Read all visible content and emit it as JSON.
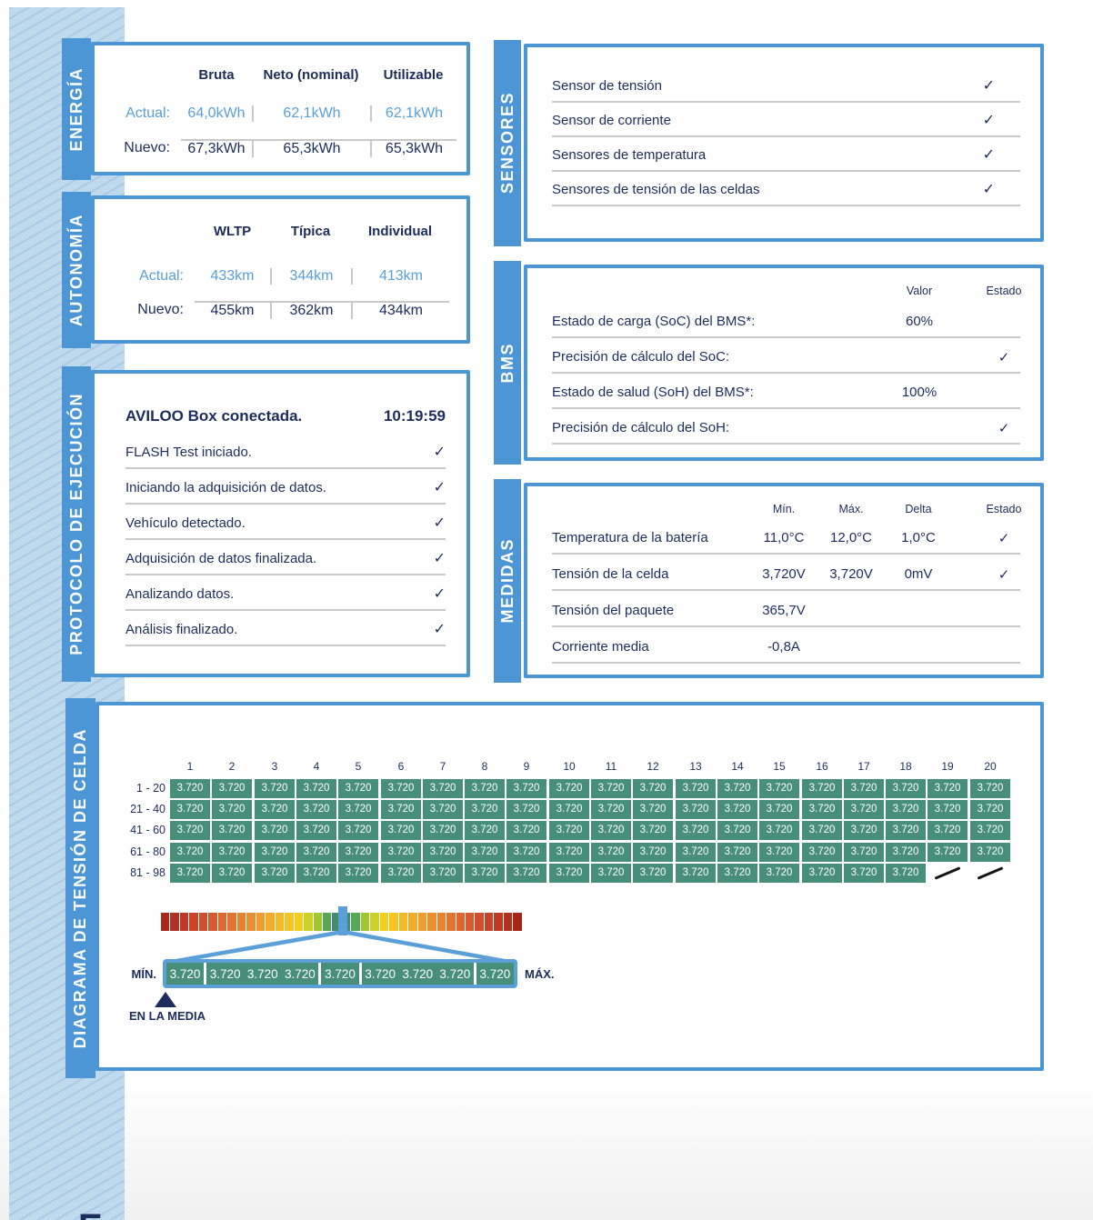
{
  "page": {
    "accent_blue": "#4d96d5",
    "navy": "#1c2d5c",
    "light_blue_value": "#58a0d7",
    "cell_green": "#478f78",
    "bottom_glyph": "E"
  },
  "energia": {
    "title": "ENERGÍA",
    "columns": [
      "Bruta",
      "Neto (nominal)",
      "Utilizable"
    ],
    "rows": [
      {
        "label": "Actual:",
        "values": [
          "64,0kWh",
          "62,1kWh",
          "62,1kWh"
        ]
      },
      {
        "label": "Nuevo:",
        "values": [
          "67,3kWh",
          "65,3kWh",
          "65,3kWh"
        ]
      }
    ]
  },
  "autonomia": {
    "title": "AUTONOMÍA",
    "columns": [
      "WLTP",
      "Típica",
      "Individual"
    ],
    "rows": [
      {
        "label": "Actual:",
        "values": [
          "433km",
          "344km",
          "413km"
        ]
      },
      {
        "label": "Nuevo:",
        "values": [
          "455km",
          "362km",
          "434km"
        ]
      }
    ]
  },
  "protocolo": {
    "title": "PROTOCOLO DE EJECUCIÓN",
    "header": {
      "label": "AVILOO Box conectada.",
      "time": "10:19:59"
    },
    "steps": [
      {
        "label": "FLASH Test iniciado.",
        "check": "✓"
      },
      {
        "label": "Iniciando la adquisición de datos.",
        "check": "✓"
      },
      {
        "label": "Vehículo detectado.",
        "check": "✓"
      },
      {
        "label": "Adquisición de datos finalizada.",
        "check": "✓"
      },
      {
        "label": "Analizando datos.",
        "check": "✓"
      },
      {
        "label": "Análisis finalizado.",
        "check": "✓"
      }
    ]
  },
  "sensores": {
    "title": "SENSORES",
    "rows": [
      {
        "label": "Sensor de tensión",
        "check": "✓"
      },
      {
        "label": "Sensor de corriente",
        "check": "✓"
      },
      {
        "label": "Sensores de temperatura",
        "check": "✓"
      },
      {
        "label": "Sensores de tensión de las celdas",
        "check": "✓"
      }
    ]
  },
  "bms": {
    "title": "BMS",
    "col_headers": [
      "Valor",
      "Estado"
    ],
    "rows": [
      {
        "label": "Estado de carga (SoC) del BMS*:",
        "valor": "60%",
        "check": ""
      },
      {
        "label": "Precisión de cálculo del SoC:",
        "valor": "",
        "check": "✓"
      },
      {
        "label": "Estado de salud (SoH) del BMS*:",
        "valor": "100%",
        "check": ""
      },
      {
        "label": "Precisión de cálculo del SoH:",
        "valor": "",
        "check": "✓"
      }
    ]
  },
  "medidas": {
    "title": "MEDIDAS",
    "col_headers": [
      "Mín.",
      "Máx.",
      "Delta",
      "Estado"
    ],
    "rows": [
      {
        "label": "Temperatura de la batería",
        "min": "11,0°C",
        "max": "12,0°C",
        "delta": "1,0°C",
        "check": "✓"
      },
      {
        "label": "Tensión de la celda",
        "min": "3,720V",
        "max": "3,720V",
        "delta": "0mV",
        "check": "✓"
      },
      {
        "label": "Tensión del paquete",
        "min": "365,7V",
        "max": "",
        "delta": "",
        "check": ""
      },
      {
        "label": "Corriente media",
        "min": "-0,8A",
        "max": "",
        "delta": "",
        "check": ""
      }
    ]
  },
  "diagrama": {
    "title": "DIAGRAMA DE TENSIÓN DE CELDA",
    "col_headers": [
      "1",
      "2",
      "3",
      "4",
      "5",
      "6",
      "7",
      "8",
      "9",
      "10",
      "11",
      "12",
      "13",
      "14",
      "15",
      "16",
      "17",
      "18",
      "19",
      "20"
    ],
    "row_headers": [
      "1 - 20",
      "21 - 40",
      "41 - 60",
      "61 - 80",
      "81 - 98"
    ],
    "cell_value": "3.720",
    "cells_per_row": [
      20,
      20,
      20,
      20,
      18
    ],
    "cell_color": "#478f78",
    "gradient_colors": [
      "#a5281b",
      "#b23122",
      "#bd3a26",
      "#c74429",
      "#cf4f2c",
      "#d75a2e",
      "#dd6730",
      "#e27431",
      "#e78231",
      "#eb9030",
      "#ef9e2e",
      "#f2ac2b",
      "#f4b928",
      "#f5c524",
      "#edd020",
      "#cdd026",
      "#9fc734",
      "#58a658",
      "#3f8e74",
      "#3f8e74",
      "#58a658",
      "#9fc734",
      "#cdd026",
      "#edd020",
      "#f5c524",
      "#f4b928",
      "#f2ac2b",
      "#ef9e2e",
      "#eb9030",
      "#e78231",
      "#e27431",
      "#dd6730",
      "#d75a2e",
      "#cf4f2c",
      "#c74429",
      "#bd3a26",
      "#b23122",
      "#a5281b"
    ],
    "marker_color": "#5b9fd8",
    "zoom_groups": [
      [
        "3.720"
      ],
      [
        "3.720",
        "3.720",
        "3.720"
      ],
      [
        "3.720"
      ],
      [
        "3.720",
        "3.720",
        "3.720"
      ],
      [
        "3.720"
      ]
    ],
    "min_label": "MÍN.",
    "max_label": "MÁX.",
    "avg_label": "EN LA MEDIA"
  },
  "chart_data": {
    "type": "heatmap",
    "title": "DIAGRAMA DE TENSIÓN DE CELDA",
    "columns": [
      1,
      2,
      3,
      4,
      5,
      6,
      7,
      8,
      9,
      10,
      11,
      12,
      13,
      14,
      15,
      16,
      17,
      18,
      19,
      20
    ],
    "rows": [
      "1 - 20",
      "21 - 40",
      "41 - 60",
      "61 - 80",
      "81 - 98"
    ],
    "cell_count": 98,
    "uniform_cell_voltage_V": 3.72,
    "min_V": 3.72,
    "max_V": 3.72,
    "legend": "color scale red–green–red with marker at mean"
  }
}
